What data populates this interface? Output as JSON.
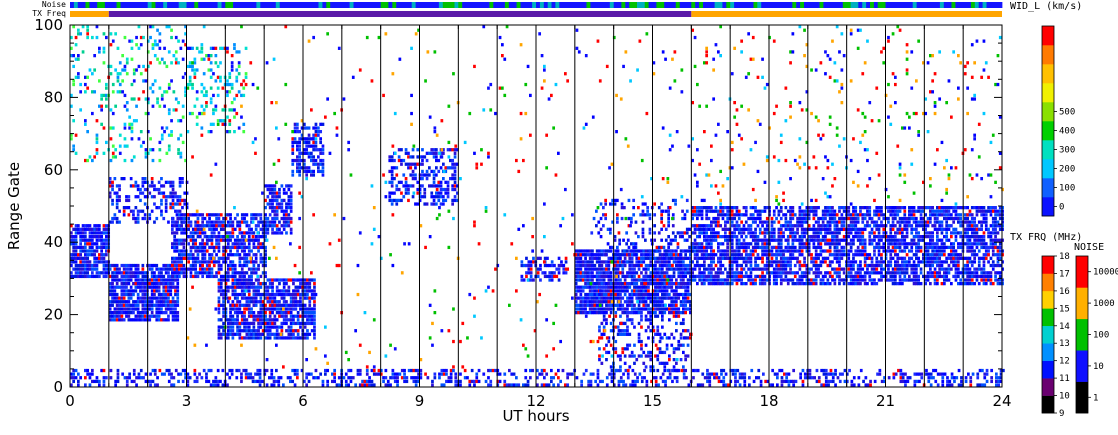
{
  "chart_data": {
    "type": "heatmap",
    "title": "",
    "xlabel": "UT hours",
    "ylabel": "Range Gate",
    "xlim": [
      0,
      24
    ],
    "ylim": [
      0,
      100
    ],
    "x_ticks": [
      "0",
      "3",
      "6",
      "9",
      "12",
      "15",
      "18",
      "21",
      "24"
    ],
    "y_ticks": [
      "0",
      "20",
      "40",
      "60",
      "80",
      "100"
    ],
    "grid_vertical_hours": [
      1,
      2,
      3,
      4,
      5,
      6,
      7,
      8,
      9,
      10,
      11,
      12,
      13,
      14,
      15,
      16,
      17,
      18,
      19,
      20,
      21,
      22,
      23
    ],
    "status_bars": {
      "noise_label": "Noise",
      "txfreq_label": "TX Freq",
      "txfreq_segments": [
        {
          "start": 0,
          "end": 1,
          "color": "#ffa500"
        },
        {
          "start": 1,
          "end": 16,
          "color": "#5a1aa8"
        },
        {
          "start": 16,
          "end": 24,
          "color": "#ffa500"
        }
      ]
    },
    "colorbars": {
      "width": {
        "title": "WID_L (km/s)",
        "ticks": [
          "0",
          "100",
          "200",
          "300",
          "400",
          "500"
        ],
        "colors": [
          "#0b12ff",
          "#1060ff",
          "#00c8ff",
          "#00e0c0",
          "#00d000",
          "#8ae000",
          "#f0f000",
          "#ffc000",
          "#ff7a00",
          "#ff0000"
        ]
      },
      "txfreq": {
        "title": "TX FRQ (MHz)",
        "ticks": [
          "9",
          "10",
          "11",
          "12",
          "13",
          "14",
          "15",
          "16",
          "17",
          "18"
        ],
        "colors": [
          "#000000",
          "#6a0070",
          "#0010ff",
          "#0090ff",
          "#00d0d0",
          "#00c000",
          "#ffd000",
          "#ff8000",
          "#ff0000"
        ]
      },
      "noise": {
        "title": "NOISE",
        "ticks": [
          "1",
          "10",
          "100",
          "1000",
          "10000"
        ],
        "colors": [
          "#000000",
          "#1010ff",
          "#00c000",
          "#ffb000",
          "#ff0000"
        ]
      }
    },
    "series": [
      {
        "region": [
          0.0,
          1.0,
          30,
          45
        ],
        "density": 0.85,
        "palette": "blue"
      },
      {
        "region": [
          1.0,
          2.8,
          18,
          34
        ],
        "density": 0.85,
        "palette": "blue"
      },
      {
        "region": [
          1.0,
          3.0,
          45,
          58
        ],
        "density": 0.4,
        "palette": "blue"
      },
      {
        "region": [
          2.6,
          5.0,
          30,
          48
        ],
        "density": 0.7,
        "palette": "blue"
      },
      {
        "region": [
          5.0,
          5.7,
          42,
          56
        ],
        "density": 0.7,
        "palette": "blue"
      },
      {
        "region": [
          3.8,
          6.3,
          13,
          30
        ],
        "density": 0.75,
        "palette": "blue"
      },
      {
        "region": [
          5.7,
          6.5,
          58,
          73
        ],
        "density": 0.6,
        "palette": "blue"
      },
      {
        "region": [
          8.2,
          10.0,
          50,
          66
        ],
        "density": 0.45,
        "palette": "blue"
      },
      {
        "region": [
          0.0,
          3.0,
          62,
          100
        ],
        "density": 0.16,
        "palette": "cyan"
      },
      {
        "region": [
          3.0,
          4.5,
          70,
          95
        ],
        "density": 0.2,
        "palette": "cyan"
      },
      {
        "region": [
          11.6,
          12.8,
          29,
          36
        ],
        "density": 0.55,
        "palette": "blue"
      },
      {
        "region": [
          13.0,
          16.0,
          20,
          38
        ],
        "density": 0.85,
        "palette": "blue"
      },
      {
        "region": [
          13.4,
          16.0,
          36,
          52
        ],
        "density": 0.25,
        "palette": "blue"
      },
      {
        "region": [
          13.6,
          16.0,
          4,
          20
        ],
        "density": 0.35,
        "palette": "blue"
      },
      {
        "region": [
          16.0,
          24.0,
          28,
          50
        ],
        "density": 0.7,
        "palette": "blue"
      },
      {
        "region": [
          16.0,
          24.0,
          50,
          100
        ],
        "density": 0.05,
        "palette": "mixed"
      },
      {
        "region": [
          0.0,
          24.0,
          0,
          5
        ],
        "density": 0.38,
        "palette": "blue"
      },
      {
        "region": [
          3.0,
          16.0,
          5,
          100
        ],
        "density": 0.02,
        "palette": "mixed"
      }
    ]
  }
}
